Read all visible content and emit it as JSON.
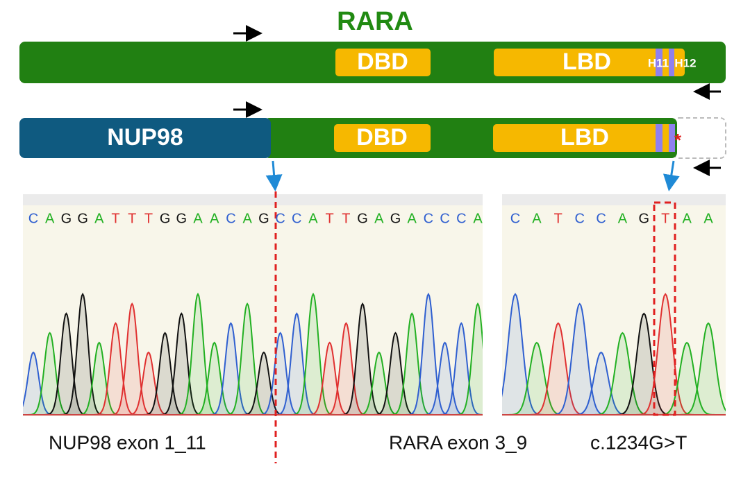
{
  "gene_title": "RARA",
  "wildtype": {
    "dbd": "DBD",
    "lbd": "LBD",
    "h11": "H11",
    "h12": "H12"
  },
  "fusion": {
    "partner": "NUP98",
    "dbd": "DBD",
    "lbd": "LBD",
    "mutation_mark": "*"
  },
  "base_colors": {
    "A": "#22b022",
    "C": "#2f5fd0",
    "G": "#111111",
    "T": "#e03030"
  },
  "chromatograms": [
    {
      "bases": [
        "C",
        "A",
        "G",
        "G",
        "A",
        "T",
        "T",
        "T",
        "G",
        "G",
        "A",
        "A",
        "C",
        "A",
        "G",
        "C",
        "C",
        "A",
        "T",
        "T",
        "G",
        "A",
        "G",
        "A",
        "C",
        "C",
        "C",
        "A"
      ]
    },
    {
      "bases": [
        "C",
        "A",
        "T",
        "C",
        "C",
        "A",
        "G",
        "T",
        "A",
        "A"
      ]
    }
  ],
  "labels": {
    "left": "NUP98 exon 1_11",
    "middle": "RARA exon 3_9",
    "right": "c.1234G>T"
  }
}
